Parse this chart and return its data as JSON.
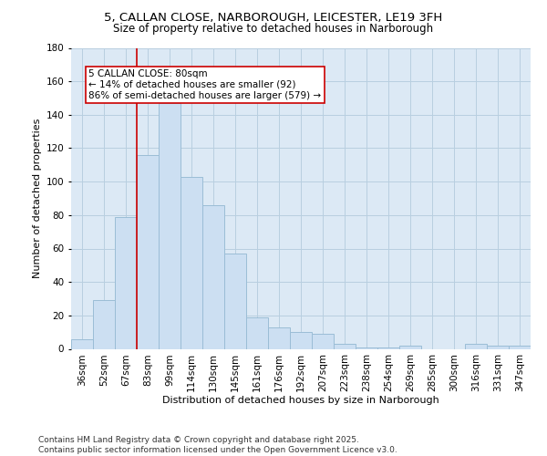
{
  "title": "5, CALLAN CLOSE, NARBOROUGH, LEICESTER, LE19 3FH",
  "subtitle": "Size of property relative to detached houses in Narborough",
  "xlabel": "Distribution of detached houses by size in Narborough",
  "ylabel": "Number of detached properties",
  "bar_labels": [
    "36sqm",
    "52sqm",
    "67sqm",
    "83sqm",
    "99sqm",
    "114sqm",
    "130sqm",
    "145sqm",
    "161sqm",
    "176sqm",
    "192sqm",
    "207sqm",
    "223sqm",
    "238sqm",
    "254sqm",
    "269sqm",
    "285sqm",
    "300sqm",
    "316sqm",
    "331sqm",
    "347sqm"
  ],
  "bar_values": [
    6,
    29,
    79,
    116,
    147,
    103,
    86,
    57,
    19,
    13,
    10,
    9,
    3,
    1,
    1,
    2,
    0,
    0,
    3,
    2,
    2
  ],
  "bar_color": "#ccdff2",
  "bar_edge_color": "#9bbdd6",
  "vline_color": "#cc0000",
  "annotation_text": "5 CALLAN CLOSE: 80sqm\n← 14% of detached houses are smaller (92)\n86% of semi-detached houses are larger (579) →",
  "annotation_box_color": "#ffffff",
  "annotation_box_edge_color": "#cc0000",
  "ylim": [
    0,
    180
  ],
  "yticks": [
    0,
    20,
    40,
    60,
    80,
    100,
    120,
    140,
    160,
    180
  ],
  "footer_text": "Contains HM Land Registry data © Crown copyright and database right 2025.\nContains public sector information licensed under the Open Government Licence v3.0.",
  "bg_color": "#ffffff",
  "plot_bg_color": "#dce9f5",
  "grid_color": "#b8cfe0",
  "title_fontsize": 9.5,
  "subtitle_fontsize": 8.5,
  "axis_label_fontsize": 8,
  "tick_fontsize": 7.5,
  "annotation_fontsize": 7.5,
  "footer_fontsize": 6.5
}
